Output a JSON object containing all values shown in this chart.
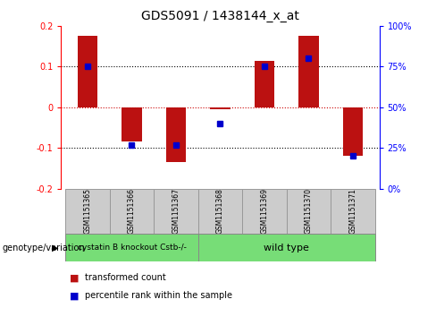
{
  "title": "GDS5091 / 1438144_x_at",
  "samples": [
    "GSM1151365",
    "GSM1151366",
    "GSM1151367",
    "GSM1151368",
    "GSM1151369",
    "GSM1151370",
    "GSM1151371"
  ],
  "bar_values": [
    0.175,
    -0.085,
    -0.135,
    -0.005,
    0.115,
    0.175,
    -0.12
  ],
  "percentile_values": [
    75,
    27,
    27,
    40,
    75,
    80,
    20
  ],
  "bar_color": "#bb1111",
  "dot_color": "#0000cc",
  "ylim_left": [
    -0.2,
    0.2
  ],
  "ylim_right": [
    0,
    100
  ],
  "yticks_left": [
    -0.2,
    -0.1,
    0.0,
    0.1,
    0.2
  ],
  "yticks_right": [
    0,
    25,
    50,
    75,
    100
  ],
  "ytick_labels_right": [
    "0%",
    "25%",
    "50%",
    "75%",
    "100%"
  ],
  "zero_line_color": "#cc0000",
  "dotted_line_color": "#000000",
  "groups": [
    {
      "label": "cystatin B knockout Cstb-/-",
      "start": 0,
      "end": 3,
      "color": "#77dd77"
    },
    {
      "label": "wild type",
      "start": 3,
      "end": 7,
      "color": "#77dd77"
    }
  ],
  "group_label": "genotype/variation",
  "legend_items": [
    {
      "label": "transformed count",
      "color": "#bb1111"
    },
    {
      "label": "percentile rank within the sample",
      "color": "#0000cc"
    }
  ],
  "bar_width": 0.45,
  "background_color": "#ffffff",
  "plot_background": "#ffffff",
  "sample_box_facecolor": "#cccccc",
  "sample_box_edgecolor": "#999999"
}
